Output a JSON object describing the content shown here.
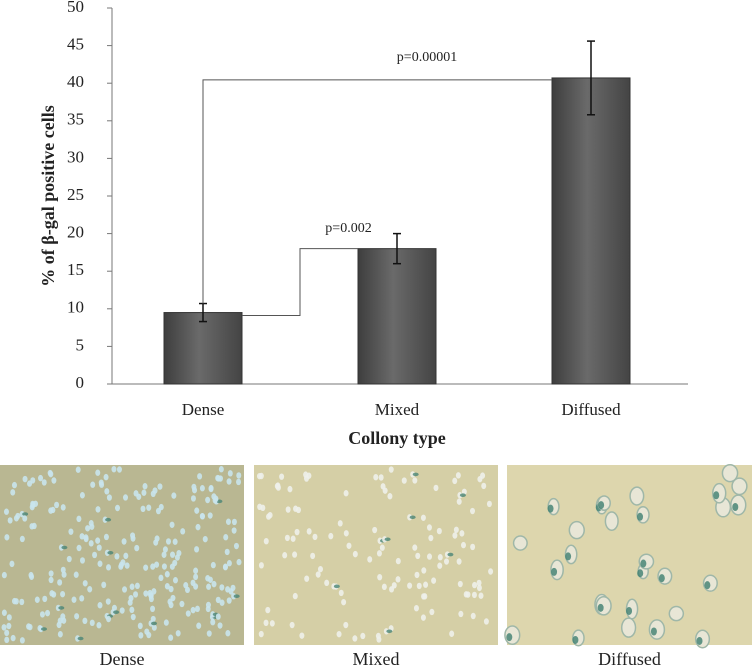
{
  "chart_data": {
    "type": "bar",
    "y_label": "% of β-gal positive cells",
    "x_label": "Collony type",
    "categories": [
      "Dense",
      "Mixed",
      "Diffused"
    ],
    "values": [
      9.5,
      18,
      40.7
    ],
    "errors": [
      1.2,
      2,
      4.9
    ],
    "color": "#5a5a5a",
    "ylim": [
      0,
      50
    ],
    "yticks": [
      0,
      5,
      10,
      15,
      20,
      25,
      30,
      35,
      40,
      45,
      50
    ],
    "grid": false,
    "annotations": [
      "p=0.002",
      "p=0.00001"
    ]
  },
  "micrographs": [
    {
      "caption": "Dense"
    },
    {
      "caption": "Mixed"
    },
    {
      "caption": "Diffused"
    }
  ]
}
